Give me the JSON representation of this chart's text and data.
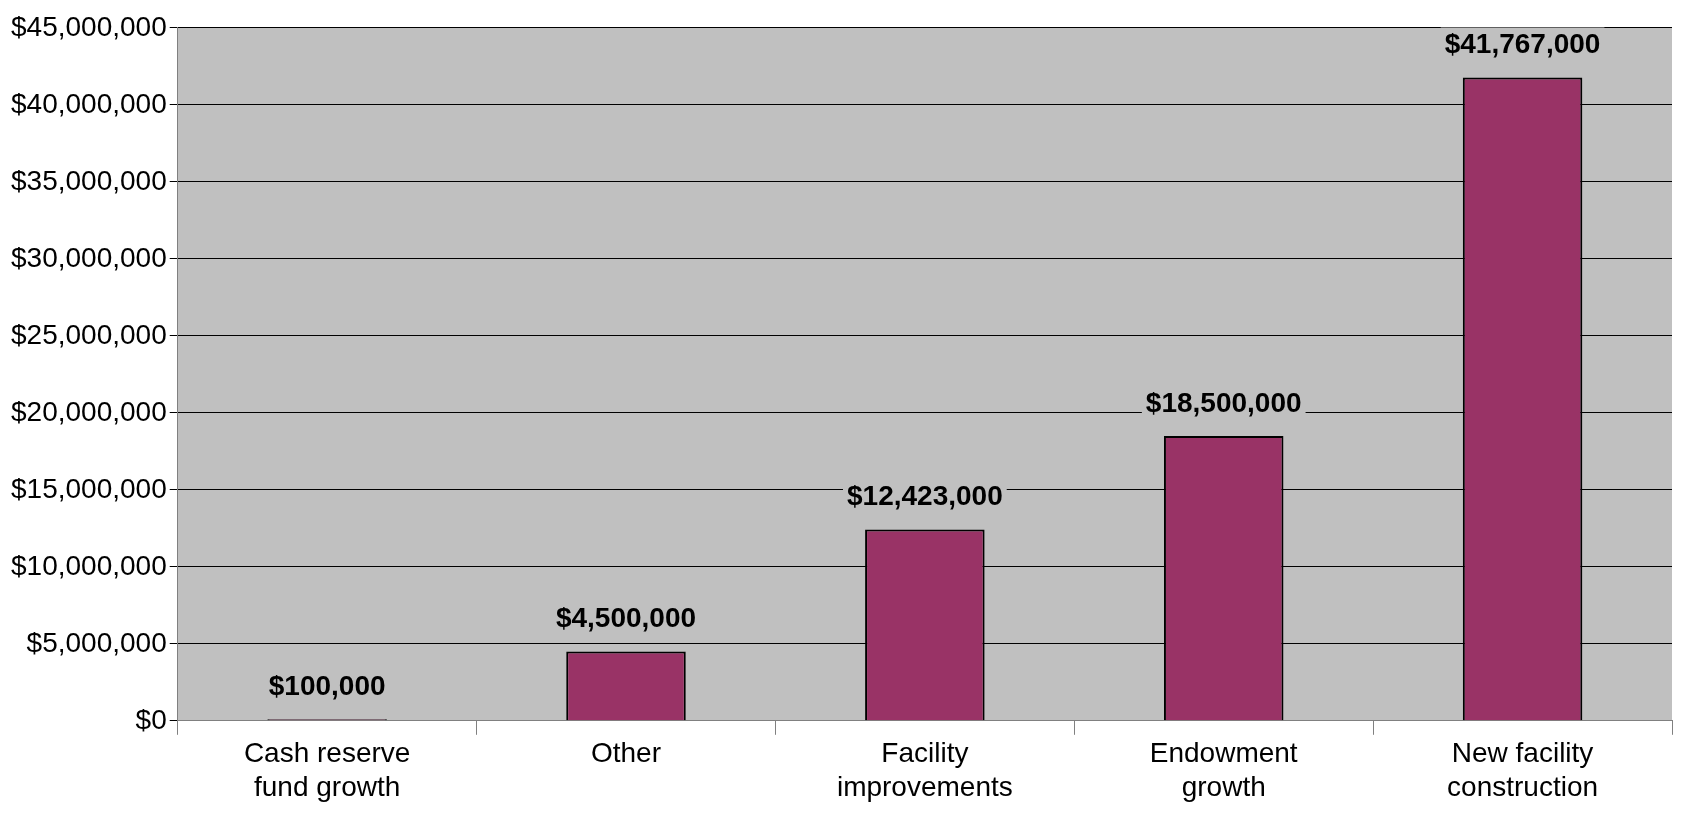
{
  "chart_data": {
    "type": "bar",
    "categories": [
      "Cash reserve fund growth",
      "Other",
      "Facility improvements",
      "Endowment growth",
      "New facility construction"
    ],
    "values": [
      100000,
      4500000,
      12423000,
      18500000,
      41767000
    ],
    "value_labels": [
      "$100,000",
      "$4,500,000",
      "$12,423,000",
      "$18,500,000",
      "$41,767,000"
    ],
    "color": "#993366",
    "ylim": [
      0,
      45000000
    ],
    "yticks": [
      {
        "value": 0,
        "label": "$0"
      },
      {
        "value": 5000000,
        "label": "$5,000,000"
      },
      {
        "value": 10000000,
        "label": "$10,000,000"
      },
      {
        "value": 15000000,
        "label": "$15,000,000"
      },
      {
        "value": 20000000,
        "label": "$20,000,000"
      },
      {
        "value": 25000000,
        "label": "$25,000,000"
      },
      {
        "value": 30000000,
        "label": "$30,000,000"
      },
      {
        "value": 35000000,
        "label": "$35,000,000"
      },
      {
        "value": 40000000,
        "label": "$40,000,000"
      },
      {
        "value": 45000000,
        "label": "$45,000,000"
      }
    ],
    "grid": "y",
    "legend": false
  }
}
